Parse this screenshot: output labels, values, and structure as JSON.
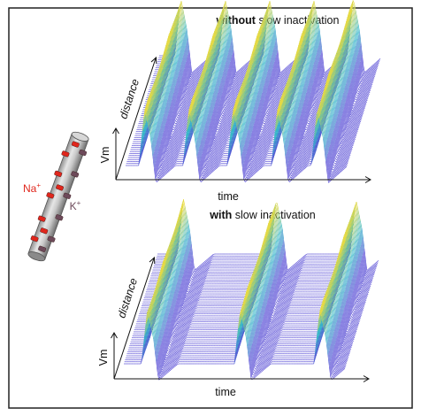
{
  "panel_top": {
    "title_bold": "without",
    "title_rest": " slow inactivation",
    "x_axis_label": "time",
    "y_axis_label": "Vm",
    "depth_axis_label": "distance",
    "spike_count": 5,
    "trace_count": 56
  },
  "panel_bottom": {
    "title_bold": "with",
    "title_rest": " slow inactivation",
    "x_axis_label": "time",
    "y_axis_label": "Vm",
    "depth_axis_label": "distance",
    "spike_count": 3,
    "trace_count": 56
  },
  "neuron": {
    "sodium_label": "Na",
    "sodium_superscript": "+",
    "potassium_label": "K",
    "potassium_superscript": "+"
  },
  "colors": {
    "sodium_channel": "#e0261c",
    "potassium_channel": "#6d4a5a",
    "trace_low": "#5a4fd6",
    "trace_mid": "#35b7c9",
    "trace_high": "#f2dc3a",
    "frame": "#222222"
  },
  "icons": {
    "neuron": "axon-cylinder-icon",
    "sodium_channel": "sodium-channel-icon",
    "potassium_channel": "potassium-channel-icon"
  }
}
